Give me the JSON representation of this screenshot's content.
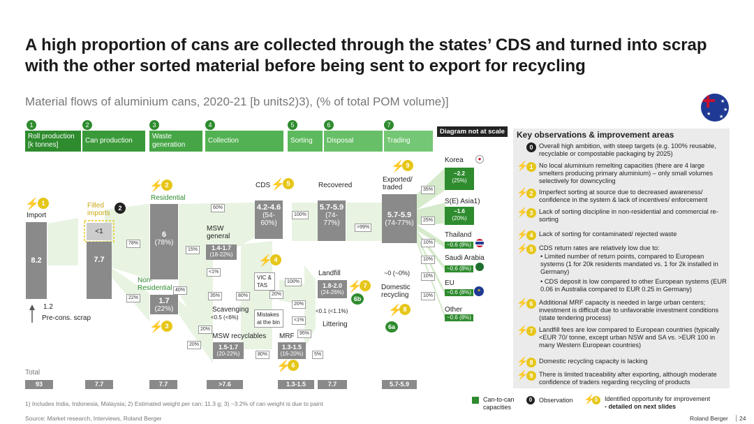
{
  "title": "A high proportion of cans are collected through the states’ CDS and turned into scrap with the other sorted material before being sent to export for recycling",
  "subtitle": "Material flows of aluminium cans, 2020-21 [b units2)3), (% of total POM volume)]",
  "steps": [
    {
      "num": "1",
      "label": "Roll production [k tonnes]"
    },
    {
      "num": "2",
      "label": "Can production"
    },
    {
      "num": "3",
      "label": "Waste generation"
    },
    {
      "num": "4",
      "label": "Collection"
    },
    {
      "num": "5",
      "label": "Sorting"
    },
    {
      "num": "6",
      "label": "Disposal"
    },
    {
      "num": "7",
      "label": "Trading"
    }
  ],
  "scale_note": "Diagram not at scale",
  "nodes": {
    "import_label": "Import",
    "import_value": "8.2",
    "filled_imports": "Filled imports",
    "filled_value": "<1",
    "can_value": "7.7",
    "residential": "Residential",
    "residential_value": "6",
    "residential_pct": "(78%)",
    "non_residential": "Non-Residential",
    "nonres_value": "1.7",
    "nonres_pct": "(22%)",
    "precons": "1.2",
    "precons_label": "Pre-cons. scrap",
    "cds": "CDS",
    "cds_value": "4.2-4.6",
    "cds_pct": "(54-60%)",
    "recovered": "Recovered",
    "recovered_value": "5.7-5.9",
    "recovered_pct": "(74-77%)",
    "exported": "Exported/ traded",
    "exported_value": "5.7-5.9",
    "exported_pct": "(74-77%)",
    "msw_general": "MSW general",
    "msw_general_value": "1.4-1.7",
    "msw_general_pct": "(18-22%)",
    "vic_tas": "VIC & TAS",
    "mistakes": "Mistakes at the bin",
    "scavenging": "Scavenging",
    "scavenging_value": "<0.5 (<6%)",
    "msw_recyclables": "MSW recyclables",
    "mswr_value": "1.5-1.7",
    "mswr_pct": "(20-22%)",
    "mrf": "MRF",
    "mrf_value": "1.3-1.5",
    "mrf_pct": "(16-20%)",
    "landfill": "Landfill",
    "landfill_value": "1.8-2.0",
    "landfill_pct": "(24-26%)",
    "littering": "Littering",
    "littering_value": "<0.1 (<1.1%)",
    "domestic": "Domestic recycling",
    "domestic_value": "~0 (~0%)"
  },
  "percents": {
    "p78": "78%",
    "p22": "22%",
    "p60": "60%",
    "p15": "15%",
    "p1a": "<1%",
    "p35": "35%",
    "p80": "80%",
    "p100a": "100%",
    "p100b": "100%",
    "p20a": "20%",
    "p20b": "20%",
    "p20c": "20%",
    "p20d": "20%",
    "p1b": "<1%",
    "p95": "95%",
    "p80b": "80%",
    "p5": "5%",
    "p99": ">99%",
    "p40": "40%",
    "t35": "35%",
    "t25": "25%",
    "t10a": "10%",
    "t10b": "10%",
    "t10c": "10%",
    "t10d": "10%"
  },
  "destinations": [
    {
      "name": "Korea",
      "value": "~2.2",
      "pct": "(25%)"
    },
    {
      "name": "S(E) Asia1)",
      "value": "~1.6",
      "pct": "(20%)"
    },
    {
      "name": "Thailand",
      "value": "~0.6 (8%)"
    },
    {
      "name": "Saudi Arabia",
      "value": "~0.6 (8%)"
    },
    {
      "name": "EU",
      "value": "~0.6 (8%)"
    },
    {
      "name": "Other",
      "value": "~0.6 (8%)"
    }
  ],
  "totals_label": "Total",
  "totals": [
    "93",
    "7.7",
    "7.7",
    ">7.6",
    "1.3-1.5",
    "7.7",
    "5.7-5.9"
  ],
  "markers": {
    "m1": "1",
    "m2": "2",
    "m3": "3",
    "m4": "4",
    "m5": "5",
    "m6": "6",
    "m6a": "6a",
    "m6b": "6b",
    "m7": "7",
    "m8": "8",
    "m9": "9",
    "obs2": "2"
  },
  "observations": {
    "title": "Key observations & improvement areas",
    "items": [
      {
        "tag": "0",
        "text": "Overall high ambition, with steep targets (e.g. 100% reusable, recyclable or compostable packaging by 2025)"
      },
      {
        "tag": "1",
        "text": "No local aluminium remelting capacities (there are 4 large smelters producing primary aluminium) – only small volumes selectively for downcycling"
      },
      {
        "tag": "2",
        "text": "Imperfect sorting at source due to decreased awareness/ confidence in the system & lack of incentives/ enforcement"
      },
      {
        "tag": "3",
        "text": "Lack of sorting discipline in non-residential and commercial re-sorting"
      },
      {
        "tag": "4",
        "text": "Lack of sorting for contaminated/ rejected waste"
      },
      {
        "tag": "5",
        "text": "CDS return rates are relatively low due to:"
      },
      {
        "tag": "",
        "text": "• Limited number of return points, compared to European systems (1 for 20k residents mandated vs. 1 for 2k installed in Germany)"
      },
      {
        "tag": "",
        "text": "• CDS deposit is low compared to other European systems (EUR 0.06 in Australia compared to EUR 0.25 in Germany)"
      },
      {
        "tag": "6",
        "text": "Additional MRF capacity is needed in large urban centers; investment is difficult due to unfavorable investment conditions (state tendering process)"
      },
      {
        "tag": "7",
        "text": "Landfill fees are low compared to European countries (typically <EUR 70/ tonne, except urban NSW and SA vs. >EUR 100 in many Western European countries)"
      },
      {
        "tag": "8",
        "text": "Domestic recycling capacity is lacking"
      },
      {
        "tag": "9",
        "text": "There is limited traceability after exporting, although moderate confidence of traders regarding recycling of products"
      }
    ]
  },
  "legend": {
    "can_to_can": "Can-to-can capacities",
    "observation_tag": "0",
    "observation": "Observation",
    "opportunity_tag": "0",
    "opportunity": "Identified opportunity for improvement",
    "opportunity_detail": "- detailed on next slides"
  },
  "footnote": "1) Includes India, Indonesia, Malaysia; 2) Estimated weight per can: 11.3 g; 3) ~3.2% of can weight is due to paint",
  "source": "Source: Market research, Interviews, Roland Berger",
  "brand": "Roland Berger",
  "page": "24",
  "colors": {
    "green": "#2e8b2e",
    "gray": "#8a8a8a",
    "yellow": "#e6c619",
    "flow": "#e8f3e2"
  }
}
